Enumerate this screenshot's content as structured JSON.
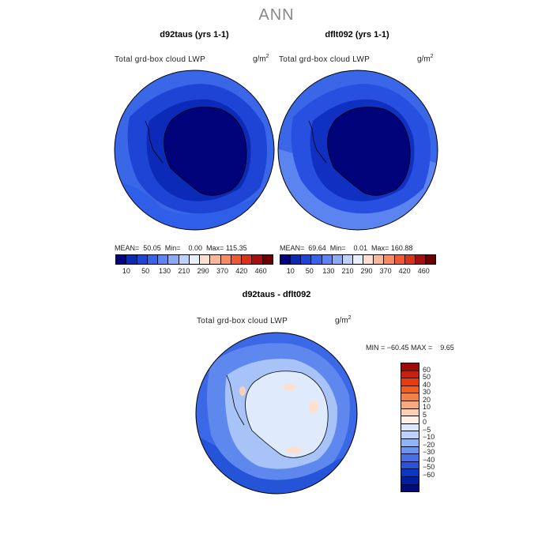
{
  "main_title": "ANN",
  "panels": [
    {
      "title": "d92taus (yrs 1-1)",
      "variable": "Total grd-box cloud LWP",
      "unit_base": "g/m",
      "unit_exp": "2",
      "stats": "MEAN=  50.05  Min=    0.00  Max= 115.35"
    },
    {
      "title": "dflt092 (yrs 1-1)",
      "variable": "Total grd-box cloud LWP",
      "unit_base": "g/m",
      "unit_exp": "2",
      "stats": "MEAN=  69.64  Min=    0.01  Max= 160.88"
    }
  ],
  "colorbar_top": {
    "colors": [
      "#00007f",
      "#0a2bb0",
      "#1c47d6",
      "#3563ea",
      "#5c84f2",
      "#8cabf7",
      "#bdd2fb",
      "#e8f0fe",
      "#fde0cf",
      "#fbb899",
      "#f78a60",
      "#ee5b33",
      "#d9341b",
      "#a50f0f",
      "#6e0000"
    ],
    "ticks": [
      "10",
      "50",
      "130",
      "210",
      "290",
      "370",
      "420",
      "460"
    ]
  },
  "diff": {
    "title": "d92taus - dflt092",
    "variable": "Total grd-box cloud LWP",
    "unit_base": "g/m",
    "unit_exp": "2",
    "stats": "MIN = −60.45 MAX =    9.65",
    "colorbar": {
      "colors": [
        "#9e0b0b",
        "#c8200f",
        "#e43d12",
        "#f15c1f",
        "#f5804a",
        "#f9a97f",
        "#fcd0b4",
        "#fdf0e6",
        "#dbe7fc",
        "#bcd2fa",
        "#92b3f5",
        "#6c93ee",
        "#4670e4",
        "#2554d8",
        "#0b36c2",
        "#001e9e",
        "#000a78"
      ],
      "labels": [
        "60",
        "50",
        "40",
        "30",
        "20",
        "10",
        "5",
        "0",
        "−5",
        "−10",
        "−20",
        "−30",
        "−40",
        "−50",
        "−60"
      ]
    }
  },
  "legend_colors": {
    "ocean_medium": "#2f5fe8",
    "continent_dark": "#00027a",
    "diff_ice": "#dfeafc",
    "diff_ocean": "#3a68e6"
  }
}
